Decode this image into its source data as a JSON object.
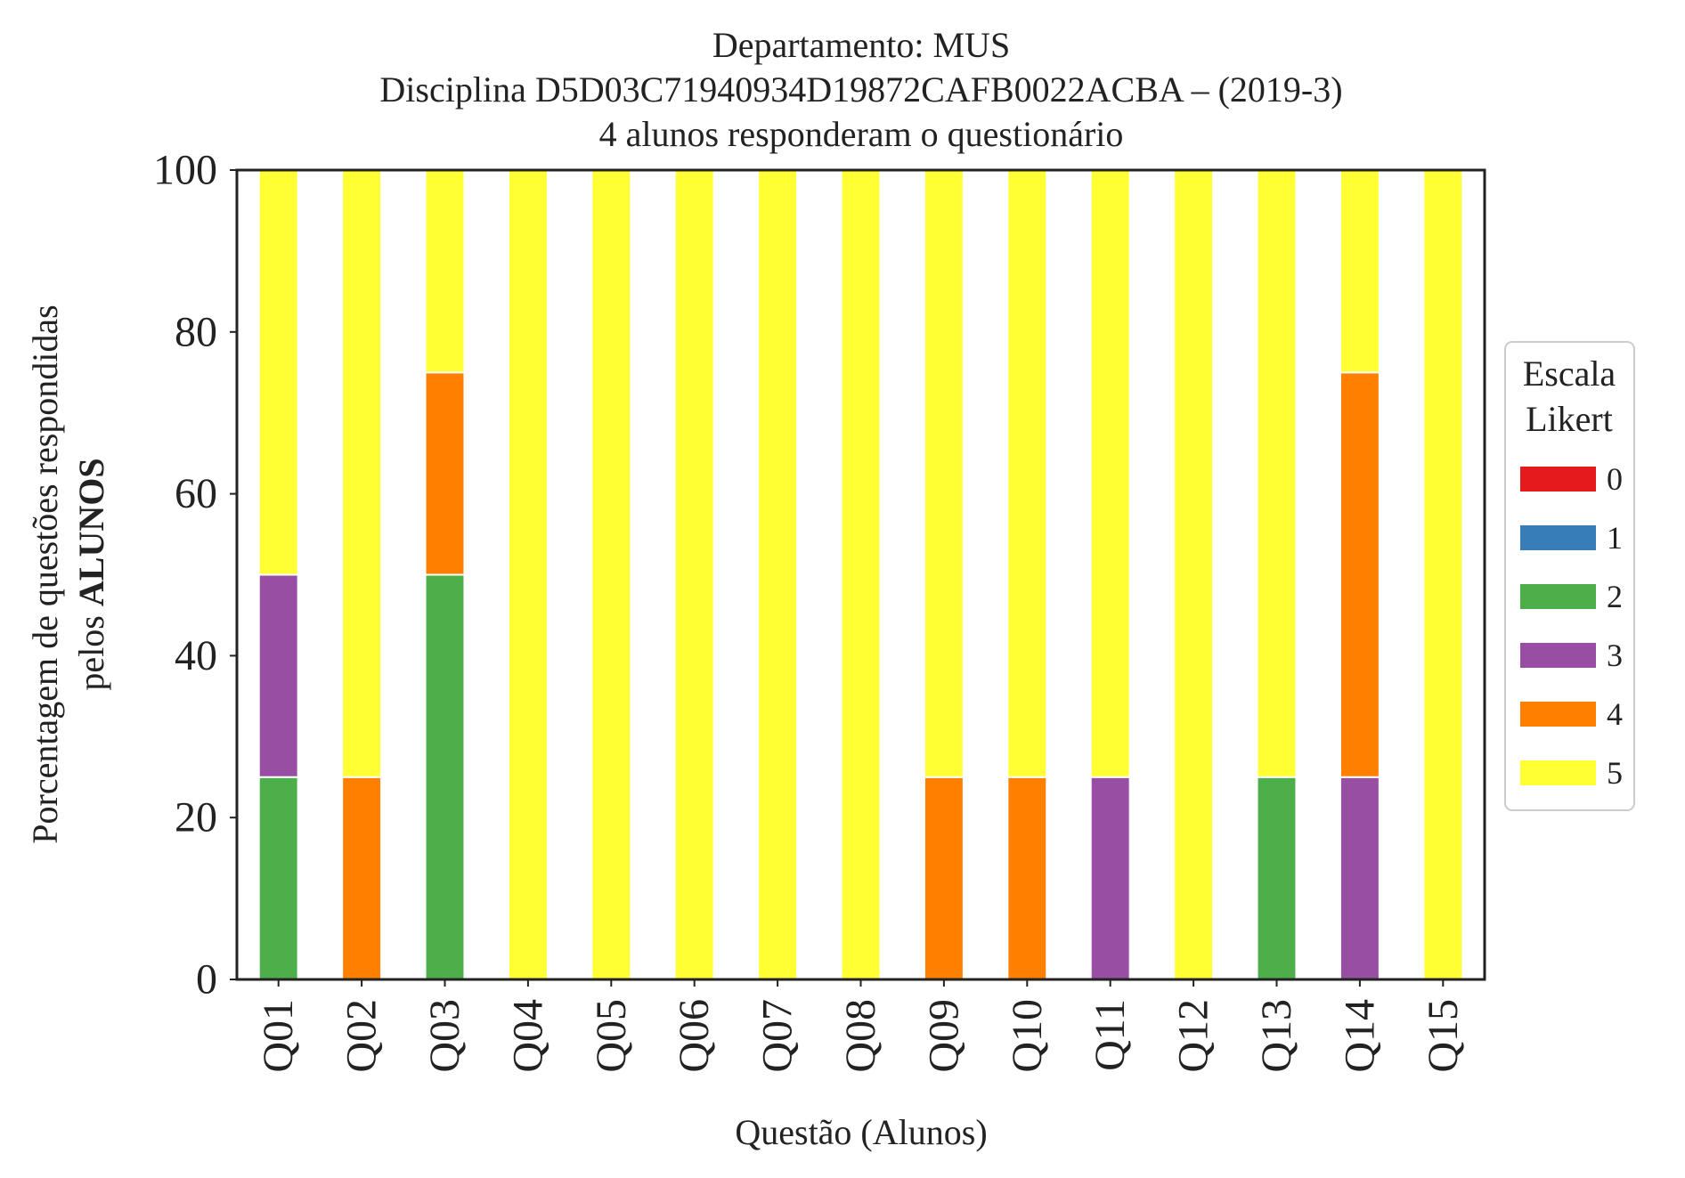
{
  "chart_data": {
    "type": "bar",
    "stacked": true,
    "title_lines": [
      "Departamento: MUS",
      "Disciplina D5D03C71940934D19872CAFB0022ACBA – (2019-3)",
      "4 alunos responderam o questionário"
    ],
    "xlabel": "Questão (Alunos)",
    "ylabel_line1": "Porcentagem de questões respondidas",
    "ylabel_line2_prefix": "pelos ",
    "ylabel_line2_bold": "ALUNOS",
    "ylim": [
      0,
      100
    ],
    "yticks": [
      0,
      20,
      40,
      60,
      80,
      100
    ],
    "categories": [
      "Q01",
      "Q02",
      "Q03",
      "Q04",
      "Q05",
      "Q06",
      "Q07",
      "Q08",
      "Q09",
      "Q10",
      "Q11",
      "Q12",
      "Q13",
      "Q14",
      "Q15"
    ],
    "series": [
      {
        "name": "0",
        "color": "#e41a1c",
        "values": [
          0,
          0,
          0,
          0,
          0,
          0,
          0,
          0,
          0,
          0,
          0,
          0,
          0,
          0,
          0
        ]
      },
      {
        "name": "1",
        "color": "#377eb8",
        "values": [
          0,
          0,
          0,
          0,
          0,
          0,
          0,
          0,
          0,
          0,
          0,
          0,
          0,
          0,
          0
        ]
      },
      {
        "name": "2",
        "color": "#4daf4a",
        "values": [
          25,
          0,
          50,
          0,
          0,
          0,
          0,
          0,
          0,
          0,
          0,
          0,
          25,
          0,
          0
        ]
      },
      {
        "name": "3",
        "color": "#984ea3",
        "values": [
          25,
          0,
          0,
          0,
          0,
          0,
          0,
          0,
          0,
          0,
          25,
          0,
          0,
          25,
          0
        ]
      },
      {
        "name": "4",
        "color": "#ff7f00",
        "values": [
          0,
          25,
          25,
          0,
          0,
          0,
          0,
          0,
          25,
          25,
          0,
          0,
          0,
          50,
          0
        ]
      },
      {
        "name": "5",
        "color": "#ffff33",
        "values": [
          50,
          75,
          25,
          100,
          100,
          100,
          100,
          100,
          75,
          75,
          75,
          100,
          75,
          25,
          100
        ]
      }
    ],
    "legend": {
      "title_lines": [
        "Escala",
        "Likert"
      ],
      "placement": "center-right outside"
    },
    "grid": false
  }
}
